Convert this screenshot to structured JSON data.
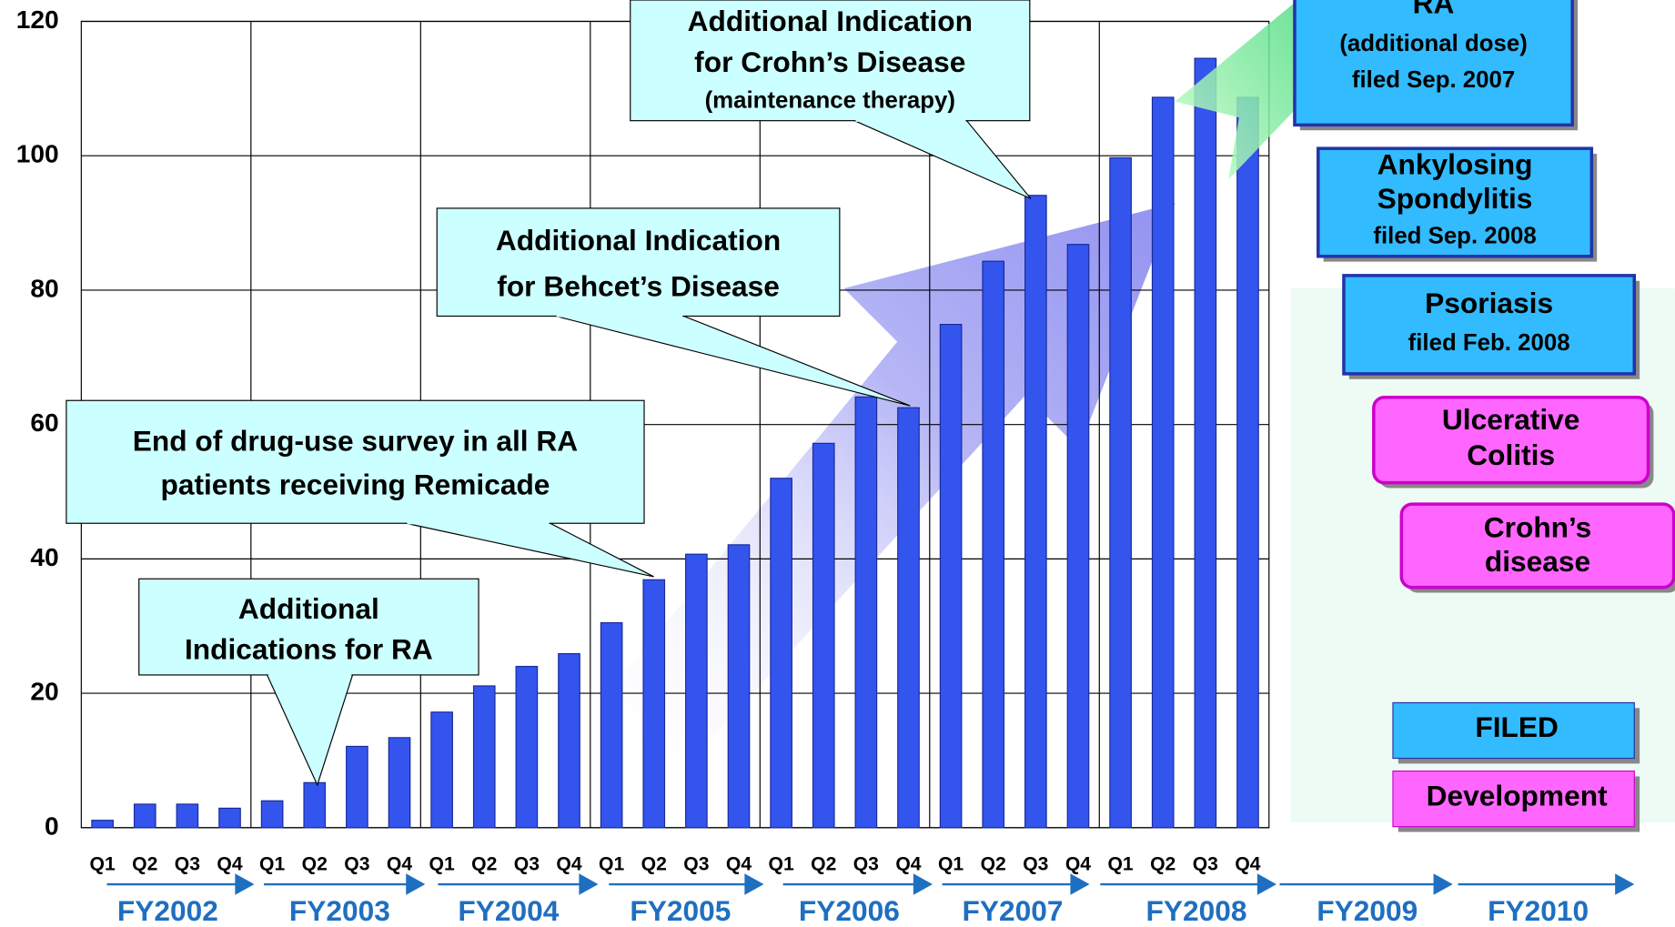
{
  "chart_data": {
    "type": "bar",
    "categories": [
      "Q1",
      "Q2",
      "Q3",
      "Q4",
      "Q1",
      "Q2",
      "Q3",
      "Q4",
      "Q1",
      "Q2",
      "Q3",
      "Q4",
      "Q1",
      "Q2",
      "Q3",
      "Q4",
      "Q1",
      "Q2",
      "Q3",
      "Q4",
      "Q1",
      "Q2",
      "Q3",
      "Q4",
      "Q1",
      "Q2",
      "Q3",
      "Q4"
    ],
    "values": [
      1.1,
      3.5,
      3.5,
      2.9,
      4.0,
      6.7,
      12.1,
      13.4,
      17.2,
      21.1,
      24.0,
      25.9,
      30.5,
      36.9,
      40.7,
      42.1,
      52.0,
      57.2,
      64.1,
      62.5,
      74.9,
      84.3,
      94.1,
      86.8,
      99.7,
      108.7,
      114.5,
      108.7
    ],
    "color": "#3355ee",
    "ylim": [
      0,
      120
    ],
    "yticks": [
      0,
      20,
      40,
      60,
      80,
      100,
      120
    ],
    "grid": true,
    "fiscal_years": [
      "FY2002",
      "FY2003",
      "FY2004",
      "FY2005",
      "FY2006",
      "FY2007",
      "FY2008",
      "FY2009",
      "FY2010"
    ],
    "annotations": [
      {
        "lines": [
          "Additional",
          "Indications for RA"
        ]
      },
      {
        "lines": [
          "End of drug-use survey in all RA",
          "patients receiving Remicade"
        ]
      },
      {
        "lines": [
          "Additional Indication",
          "for Behcet’s Disease"
        ]
      },
      {
        "lines": [
          "Additional Indication",
          "for Crohn’s Disease",
          "(maintenance therapy)"
        ]
      }
    ],
    "pipeline": [
      {
        "lines": [
          "RA",
          "(additional dose)",
          "filed Sep. 2007"
        ],
        "color": "#33bbff"
      },
      {
        "lines": [
          "Ankylosing",
          "Spondylitis",
          "filed Sep.  2008"
        ],
        "color": "#33bbff"
      },
      {
        "lines": [
          "Psoriasis",
          "filed Feb. 2008"
        ],
        "color": "#33bbff"
      },
      {
        "lines": [
          "Ulcerative",
          "Colitis"
        ],
        "color": "#ff66ff"
      },
      {
        "lines": [
          "Crohn’s",
          "disease"
        ],
        "color": "#ff66ff"
      }
    ],
    "legend": [
      {
        "name": "FILED",
        "color": "#33bbff"
      },
      {
        "name": "Development",
        "color": "#ff66ff"
      }
    ]
  }
}
